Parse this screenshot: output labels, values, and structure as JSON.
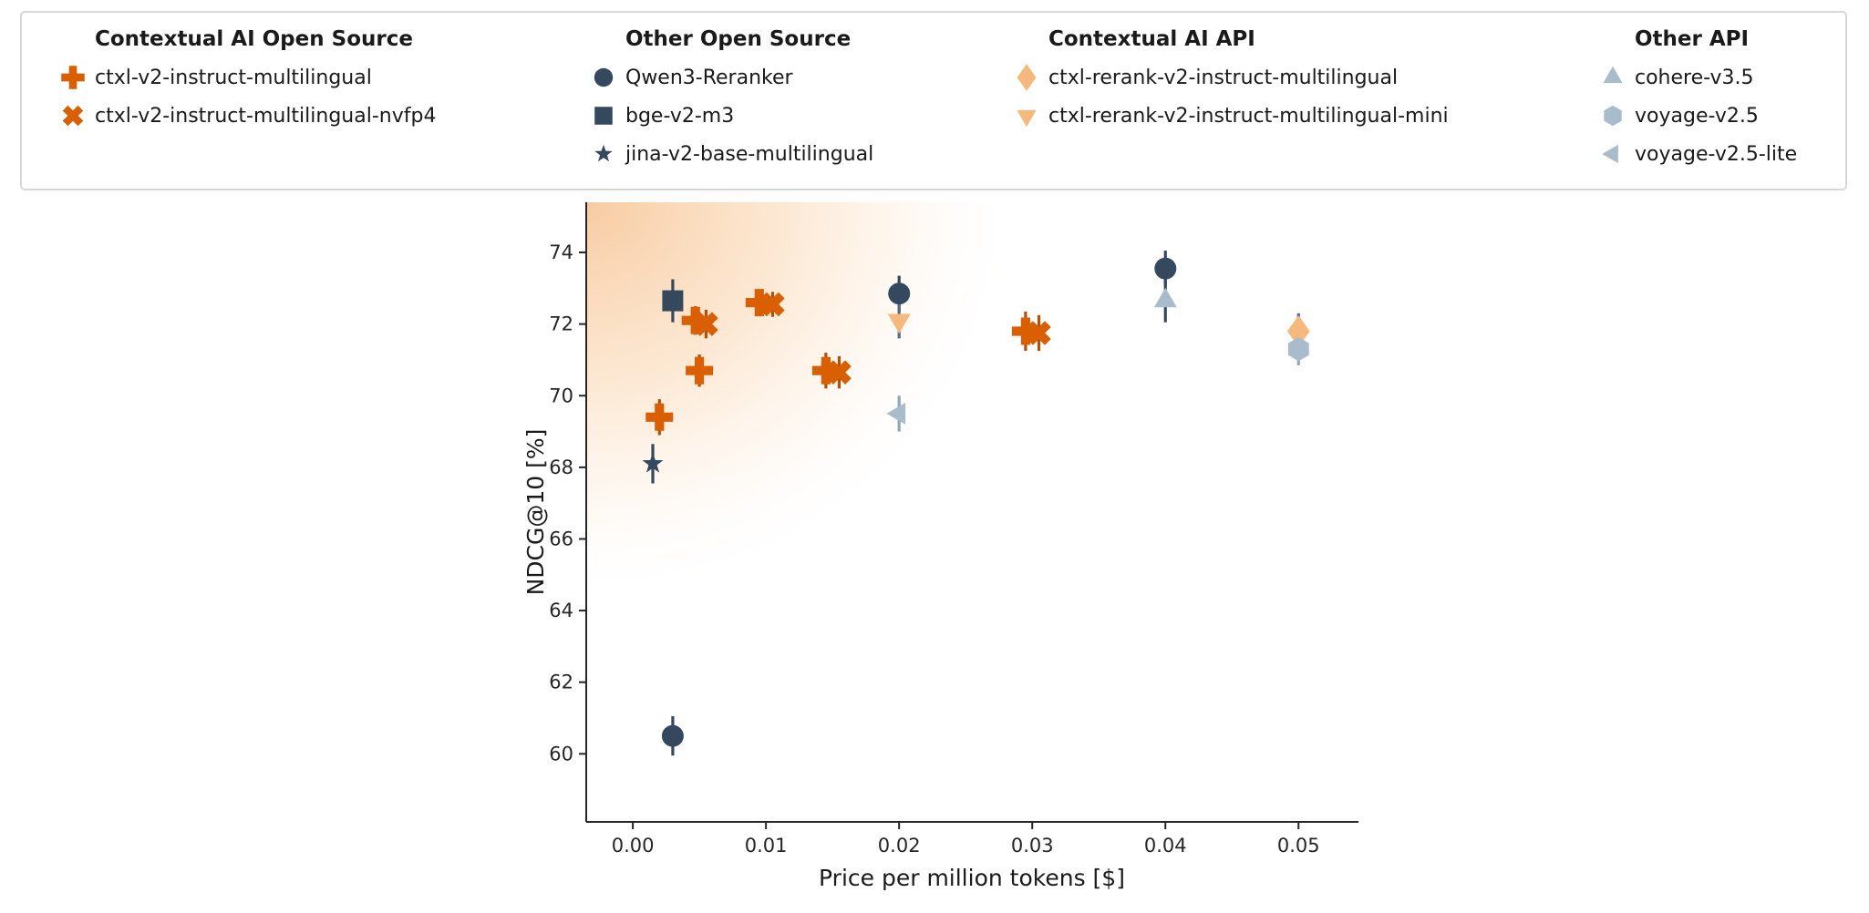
{
  "legend": {
    "groups": [
      {
        "title": "Contextual AI Open Source",
        "items": [
          {
            "label": "ctxl-v2-instruct-multilingual",
            "marker": "plus",
            "color": "#D95F02"
          },
          {
            "label": "ctxl-v2-instruct-multilingual-nvfp4",
            "marker": "x",
            "color": "#D95F02"
          }
        ]
      },
      {
        "title": "Other Open Source",
        "items": [
          {
            "label": "Qwen3-Reranker",
            "marker": "circle",
            "color": "#34495E"
          },
          {
            "label": "bge-v2-m3",
            "marker": "square",
            "color": "#34495E"
          },
          {
            "label": "jina-v2-base-multilingual",
            "marker": "star",
            "color": "#34495E"
          }
        ]
      },
      {
        "title": "Contextual AI API",
        "items": [
          {
            "label": "ctxl-rerank-v2-instruct-multilingual",
            "marker": "diamond",
            "color": "#F6B87C"
          },
          {
            "label": "ctxl-rerank-v2-instruct-multilingual-mini",
            "marker": "triangle-down",
            "color": "#F6B87C"
          }
        ]
      },
      {
        "title": "Other API",
        "items": [
          {
            "label": "cohere-v3.5",
            "marker": "triangle-up",
            "color": "#A9BCCB"
          },
          {
            "label": "voyage-v2.5",
            "marker": "hexagon",
            "color": "#A9BCCB"
          },
          {
            "label": "voyage-v2.5-lite",
            "marker": "triangle-left",
            "color": "#A9BCCB"
          }
        ]
      }
    ]
  },
  "chart_data": {
    "type": "scatter",
    "title": "",
    "xlabel": "Price per million tokens [$]",
    "ylabel": "NDCG@10 [%]",
    "xlim": [
      -0.0035,
      0.0545
    ],
    "ylim": [
      58.1,
      75.4
    ],
    "xticks": [
      "0.00",
      "0.01",
      "0.02",
      "0.03",
      "0.04",
      "0.05"
    ],
    "xtick_values": [
      0,
      0.01,
      0.02,
      0.03,
      0.04,
      0.05
    ],
    "yticks": [
      60,
      62,
      64,
      66,
      68,
      70,
      72,
      74
    ],
    "grid": false,
    "legend_position": "top",
    "highlight_region": {
      "corner": "top-left",
      "color": "#F0933C",
      "meaning": "shaded gradient region in upper-left of plot"
    },
    "series": [
      {
        "name": "ctxl-v2-instruct-multilingual",
        "group": "Contextual AI Open Source",
        "marker": "plus",
        "color": "#D95F02",
        "error_color": "#B55106",
        "size": 30,
        "points": [
          {
            "x": 0.002,
            "y": 69.4,
            "err": 0.5
          },
          {
            "x": 0.005,
            "y": 70.7,
            "err": 0.45
          },
          {
            "x": 0.0047,
            "y": 72.1,
            "err": 0.4
          },
          {
            "x": 0.0095,
            "y": 72.6,
            "err": 0.35
          },
          {
            "x": 0.0145,
            "y": 70.7,
            "err": 0.5
          },
          {
            "x": 0.0295,
            "y": 71.8,
            "err": 0.55
          }
        ]
      },
      {
        "name": "ctxl-v2-instruct-multilingual-nvfp4",
        "group": "Contextual AI Open Source",
        "marker": "x",
        "color": "#D95F02",
        "error_color": "#B55106",
        "size": 28,
        "points": [
          {
            "x": 0.0055,
            "y": 72.0,
            "err": 0.4
          },
          {
            "x": 0.0105,
            "y": 72.55,
            "err": 0.35
          },
          {
            "x": 0.0155,
            "y": 70.65,
            "err": 0.45
          },
          {
            "x": 0.0305,
            "y": 71.75,
            "err": 0.5
          }
        ]
      },
      {
        "name": "Qwen3-Reranker",
        "group": "Other Open Source",
        "marker": "circle",
        "color": "#34495E",
        "error_color": "#34495E",
        "size": 24,
        "points": [
          {
            "x": 0.003,
            "y": 60.5,
            "err": 0.55
          },
          {
            "x": 0.02,
            "y": 72.85,
            "err": 0.5
          },
          {
            "x": 0.04,
            "y": 73.55,
            "err": 0.5
          }
        ]
      },
      {
        "name": "bge-v2-m3",
        "group": "Other Open Source",
        "marker": "square",
        "color": "#34495E",
        "error_color": "#34495E",
        "size": 23,
        "points": [
          {
            "x": 0.003,
            "y": 72.65,
            "err": 0.6
          }
        ]
      },
      {
        "name": "jina-v2-base-multilingual",
        "group": "Other Open Source",
        "marker": "star",
        "color": "#34495E",
        "error_color": "#34495E",
        "size": 21,
        "points": [
          {
            "x": 0.0015,
            "y": 68.1,
            "err": 0.55
          }
        ]
      },
      {
        "name": "ctxl-rerank-v2-instruct-multilingual",
        "group": "Contextual AI API",
        "marker": "diamond",
        "color": "#F6B87C",
        "error_color": "#566B7D",
        "size": 29,
        "points": [
          {
            "x": 0.05,
            "y": 71.8,
            "err": 0.5
          }
        ]
      },
      {
        "name": "ctxl-rerank-v2-instruct-multilingual-mini",
        "group": "Contextual AI API",
        "marker": "triangle-down",
        "color": "#F6B87C",
        "error_color": "#566B7D",
        "size": 25,
        "points": [
          {
            "x": 0.02,
            "y": 72.1,
            "err": 0.5
          }
        ]
      },
      {
        "name": "cohere-v3.5",
        "group": "Other API",
        "marker": "triangle-up",
        "color": "#A9BCCB",
        "error_color": "#34495E",
        "size": 25,
        "points": [
          {
            "x": 0.04,
            "y": 72.65,
            "err": 0.6
          }
        ]
      },
      {
        "name": "voyage-v2.5",
        "group": "Other API",
        "marker": "hexagon",
        "color": "#A9BCCB",
        "error_color": "#90A6B8",
        "size": 24,
        "points": [
          {
            "x": 0.05,
            "y": 71.3,
            "err": 0.45
          }
        ]
      },
      {
        "name": "voyage-v2.5-lite",
        "group": "Other API",
        "marker": "triangle-left",
        "color": "#A9BCCB",
        "error_color": "#90A6B8",
        "size": 24,
        "points": [
          {
            "x": 0.02,
            "y": 69.5,
            "err": 0.5
          }
        ]
      }
    ]
  }
}
